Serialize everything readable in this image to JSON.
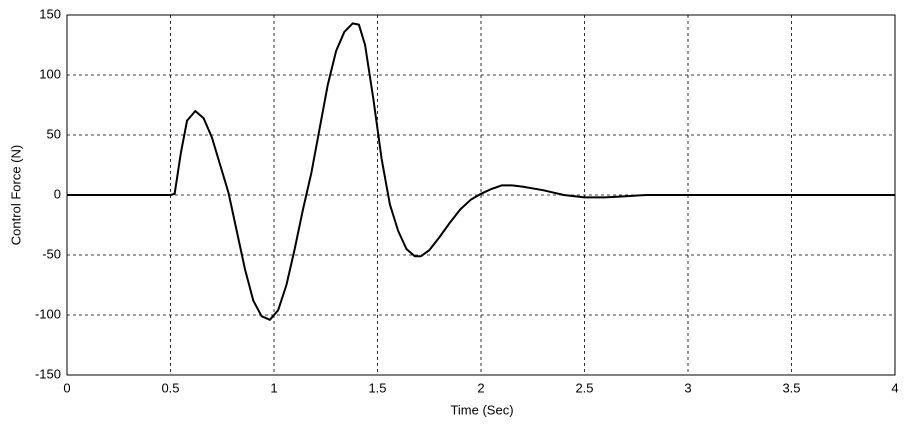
{
  "chart_data": {
    "type": "line",
    "xlabel": "Time (Sec)",
    "ylabel": "Control Force (N)",
    "x": [
      0,
      0.5,
      0.52,
      0.55,
      0.58,
      0.62,
      0.66,
      0.7,
      0.74,
      0.78,
      0.82,
      0.86,
      0.9,
      0.94,
      0.98,
      1.02,
      1.06,
      1.1,
      1.14,
      1.18,
      1.22,
      1.26,
      1.3,
      1.34,
      1.38,
      1.41,
      1.44,
      1.48,
      1.52,
      1.56,
      1.6,
      1.64,
      1.68,
      1.71,
      1.75,
      1.8,
      1.85,
      1.9,
      1.95,
      2.0,
      2.05,
      2.1,
      2.15,
      2.2,
      2.3,
      2.4,
      2.5,
      2.6,
      2.7,
      2.8,
      2.9,
      3.0,
      4.0
    ],
    "series": [
      {
        "color": "#000000",
        "values": [
          0,
          0,
          1,
          35,
          62,
          70,
          64,
          48,
          25,
          2,
          -30,
          -62,
          -88,
          -101,
          -104,
          -96,
          -75,
          -45,
          -12,
          18,
          55,
          92,
          120,
          136,
          143,
          142,
          125,
          80,
          30,
          -8,
          -30,
          -45,
          -51,
          -51,
          -46,
          -35,
          -23,
          -12,
          -4,
          1,
          5,
          8,
          8,
          7,
          4,
          0,
          -2,
          -2,
          -1,
          0,
          0,
          0,
          0
        ]
      }
    ],
    "xlim": [
      0,
      4
    ],
    "xticks": [
      0,
      0.5,
      1,
      1.5,
      2,
      2.5,
      3,
      3.5,
      4
    ],
    "ylim": [
      -150,
      150
    ],
    "yticks": [
      -150,
      -100,
      -50,
      0,
      50,
      100,
      150
    ],
    "grid": true
  }
}
